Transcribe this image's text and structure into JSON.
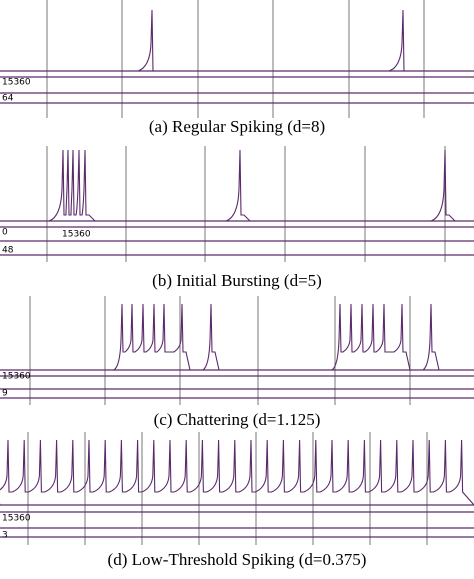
{
  "panels": [
    {
      "caption": "(a) Regular Spiking (d=8)",
      "labels": [
        "15360",
        "64"
      ]
    },
    {
      "caption": "(b) Initial Bursting (d=5)",
      "labels": [
        "0",
        "15360",
        "48"
      ]
    },
    {
      "caption": "(c) Chattering (d=1.125)",
      "labels": [
        "15360",
        "9"
      ]
    },
    {
      "caption": "(d) Low-Threshold Spiking (d=0.375)",
      "labels": [
        "15360",
        "3"
      ]
    }
  ]
}
